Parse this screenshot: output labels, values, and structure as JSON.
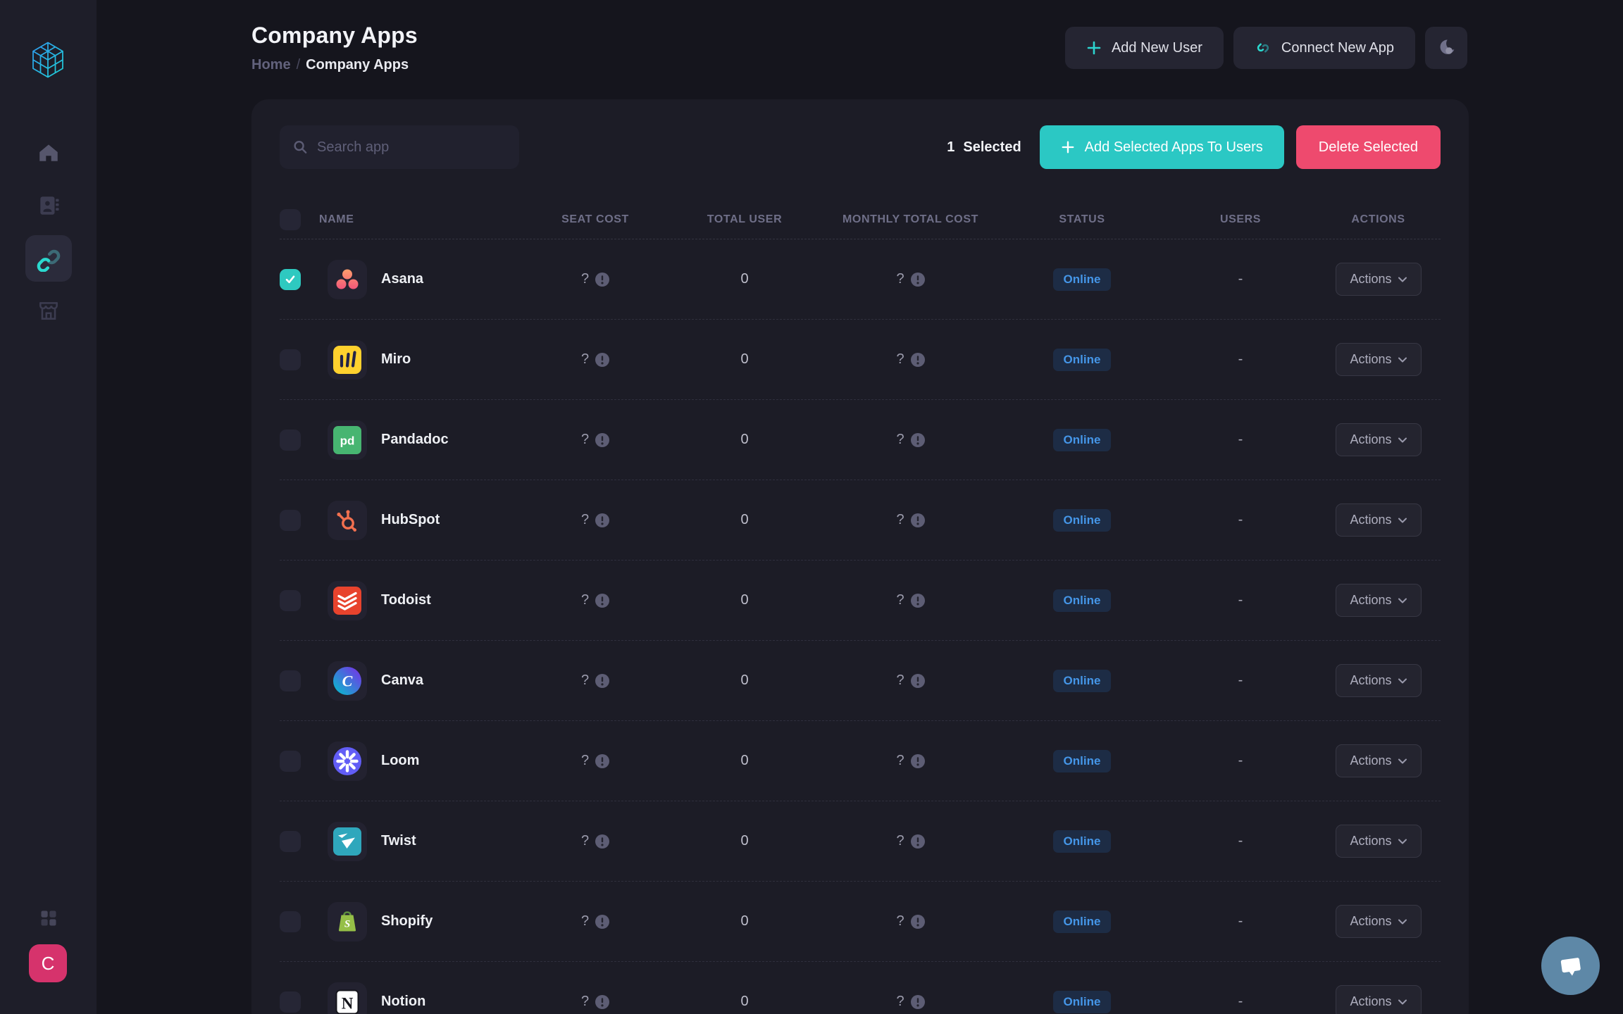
{
  "sidebar": {
    "logo_name": "cube-logo",
    "avatar_label": "C",
    "items": [
      "home",
      "contacts",
      "connections",
      "store",
      "apps-grid"
    ]
  },
  "header": {
    "title": "Company Apps",
    "breadcrumb_home": "Home",
    "breadcrumb_sep": "/",
    "breadcrumb_current": "Company Apps",
    "add_user_label": "Add New User",
    "connect_app_label": "Connect New App"
  },
  "toolbar": {
    "search_placeholder": "Search app",
    "selected_count": "1",
    "selected_word": "Selected",
    "add_selected_label": "Add Selected Apps To Users",
    "delete_selected_label": "Delete Selected"
  },
  "table": {
    "columns": [
      "NAME",
      "SEAT COST",
      "TOTAL USER",
      "MONTHLY TOTAL COST",
      "STATUS",
      "USERS",
      "ACTIONS"
    ],
    "actions_label": "Actions",
    "rows": [
      {
        "name": "Asana",
        "icon": "asana",
        "selected": true,
        "seat_cost": "?",
        "total_user": "0",
        "monthly_total_cost": "?",
        "status": "Online",
        "users": "-"
      },
      {
        "name": "Miro",
        "icon": "miro",
        "selected": false,
        "seat_cost": "?",
        "total_user": "0",
        "monthly_total_cost": "?",
        "status": "Online",
        "users": "-"
      },
      {
        "name": "Pandadoc",
        "icon": "pandadoc",
        "selected": false,
        "seat_cost": "?",
        "total_user": "0",
        "monthly_total_cost": "?",
        "status": "Online",
        "users": "-"
      },
      {
        "name": "HubSpot",
        "icon": "hubspot",
        "selected": false,
        "seat_cost": "?",
        "total_user": "0",
        "monthly_total_cost": "?",
        "status": "Online",
        "users": "-"
      },
      {
        "name": "Todoist",
        "icon": "todoist",
        "selected": false,
        "seat_cost": "?",
        "total_user": "0",
        "monthly_total_cost": "?",
        "status": "Online",
        "users": "-"
      },
      {
        "name": "Canva",
        "icon": "canva",
        "selected": false,
        "seat_cost": "?",
        "total_user": "0",
        "monthly_total_cost": "?",
        "status": "Online",
        "users": "-"
      },
      {
        "name": "Loom",
        "icon": "loom",
        "selected": false,
        "seat_cost": "?",
        "total_user": "0",
        "monthly_total_cost": "?",
        "status": "Online",
        "users": "-"
      },
      {
        "name": "Twist",
        "icon": "twist",
        "selected": false,
        "seat_cost": "?",
        "total_user": "0",
        "monthly_total_cost": "?",
        "status": "Online",
        "users": "-"
      },
      {
        "name": "Shopify",
        "icon": "shopify",
        "selected": false,
        "seat_cost": "?",
        "total_user": "0",
        "monthly_total_cost": "?",
        "status": "Online",
        "users": "-"
      },
      {
        "name": "Notion",
        "icon": "notion",
        "selected": false,
        "seat_cost": "?",
        "total_user": "0",
        "monthly_total_cost": "?",
        "status": "Online",
        "users": "-"
      }
    ]
  },
  "colors": {
    "accent_teal": "#2bc8c4",
    "accent_pink": "#ee4a6e",
    "status_blue": "#4596e8",
    "avatar_pink": "#d6336c"
  }
}
